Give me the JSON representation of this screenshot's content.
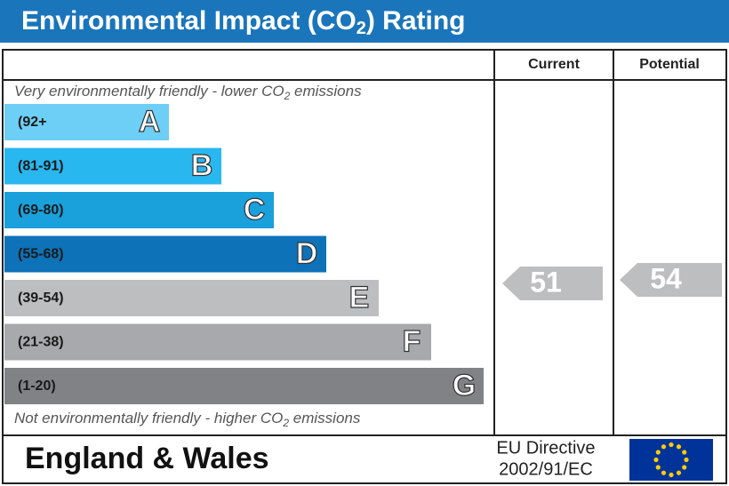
{
  "header": {
    "title": [
      "Environmental Impact (CO",
      "2",
      ") Rating"
    ]
  },
  "columns": [
    "Current",
    "Potential"
  ],
  "top_note": [
    "Very environmentally friendly - lower CO",
    "2",
    " emissions"
  ],
  "bottom_note": [
    "Not environmentally friendly - higher CO",
    "2",
    " emissions"
  ],
  "bands": [
    {
      "range": "(92+",
      "letter": "A"
    },
    {
      "range": "(81-91)",
      "letter": "B"
    },
    {
      "range": "(69-80)",
      "letter": "C"
    },
    {
      "range": "(55-68)",
      "letter": "D"
    },
    {
      "range": "(39-54)",
      "letter": "E"
    },
    {
      "range": "(21-38)",
      "letter": "F"
    },
    {
      "range": "(1-20)",
      "letter": "G"
    }
  ],
  "current": {
    "value": 51
  },
  "potential": {
    "value": 54
  },
  "footer": {
    "region": "England & Wales",
    "directive": [
      "EU Directive",
      "2002/91/EC"
    ]
  }
}
